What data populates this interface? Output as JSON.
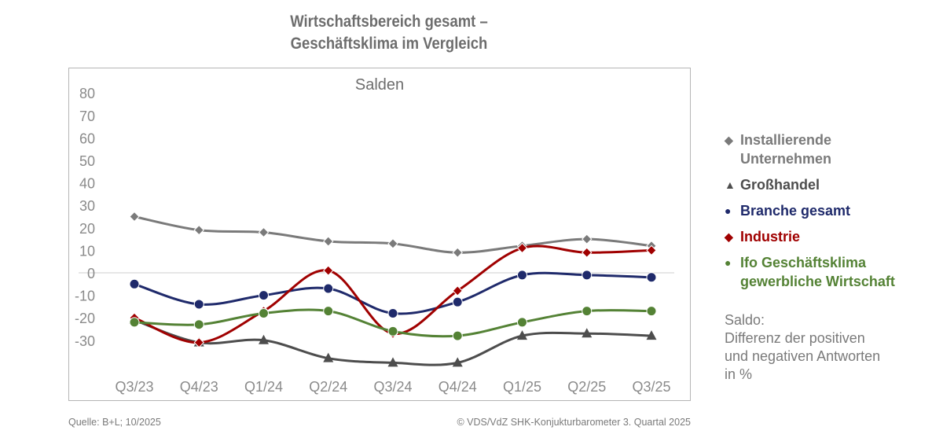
{
  "chart_data": {
    "type": "line",
    "title": [
      "Wirtschaftsbereich gesamt –",
      "Geschäftsklima im Vergleich"
    ],
    "subtitle": "Salden",
    "categories": [
      "Q3/23",
      "Q4/23",
      "Q1/24",
      "Q2/24",
      "Q3/24",
      "Q4/24",
      "Q1/25",
      "Q2/25",
      "Q3/25"
    ],
    "yticks": [
      80,
      70,
      60,
      50,
      40,
      30,
      20,
      10,
      0,
      -10,
      -20,
      -30
    ],
    "ylim": [
      -40,
      80
    ],
    "series": [
      {
        "name": "Installierende Unternehmen",
        "label": [
          "Installierende",
          "Unternehmen"
        ],
        "color": "#7a7a7a",
        "marker": "diamond",
        "values": [
          25,
          19,
          18,
          14,
          13,
          9,
          12,
          15,
          12
        ]
      },
      {
        "name": "Großhandel",
        "label": [
          "Großhandel"
        ],
        "color": "#4d4d4d",
        "marker": "triangle",
        "values": [
          -21,
          -31,
          -30,
          -38,
          -40,
          -40,
          -28,
          -27,
          -28
        ]
      },
      {
        "name": "Branche gesamt",
        "label": [
          "Branche gesamt"
        ],
        "color": "#1f2a6b",
        "marker": "circle",
        "values": [
          -5,
          -14,
          -10,
          -7,
          -18,
          -13,
          -1,
          -1,
          -2
        ]
      },
      {
        "name": "Industrie",
        "label": [
          "Industrie"
        ],
        "color": "#a00000",
        "marker": "diamond",
        "values": [
          -20,
          -31,
          -17,
          1,
          -27,
          -8,
          11,
          9,
          10
        ]
      },
      {
        "name": "Ifo Geschäftsklima gewerbliche Wirtschaft",
        "label": [
          "Ifo Geschäftsklima",
          "gewerbliche Wirtschaft"
        ],
        "color": "#548235",
        "marker": "circle",
        "values": [
          -22,
          -23,
          -18,
          -17,
          -26,
          -28,
          -22,
          -17,
          -17
        ]
      }
    ]
  },
  "note": [
    "Saldo:",
    "Differenz der positiven",
    "und negativen Antworten",
    "in %"
  ],
  "source": "Quelle: B+L; 10/2025",
  "copyright": "© VDS/VdZ SHK-Konjukturbarometer 3. Quartal 2025"
}
